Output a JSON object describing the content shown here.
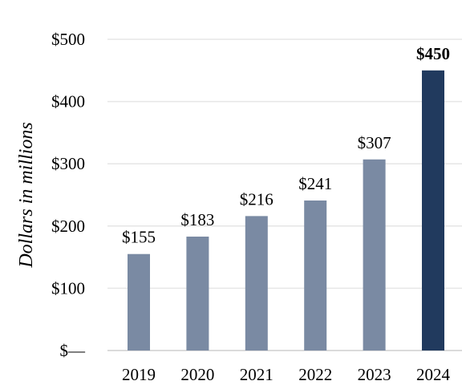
{
  "chart_data": {
    "type": "bar",
    "categories": [
      "2019",
      "2020",
      "2021",
      "2022",
      "2023",
      "2024"
    ],
    "values": [
      155,
      183,
      216,
      241,
      307,
      450
    ],
    "data_labels": [
      "$155",
      "$183",
      "$216",
      "$241",
      "$307",
      "$450"
    ],
    "highlight_index": 5,
    "title": "",
    "xlabel": "",
    "ylabel": "Dollars in millions",
    "ylim": [
      0,
      500
    ],
    "yticks": [
      0,
      100,
      200,
      300,
      400,
      500
    ],
    "ytick_labels": [
      "$—",
      "$100",
      "$200",
      "$300",
      "$400",
      "$500"
    ],
    "grid": true,
    "legend": "none",
    "colors": {
      "bar": "#7a8aa3",
      "highlight": "#213a5e",
      "grid": "#e6e6e6",
      "axis": "#cfcfcf"
    }
  }
}
